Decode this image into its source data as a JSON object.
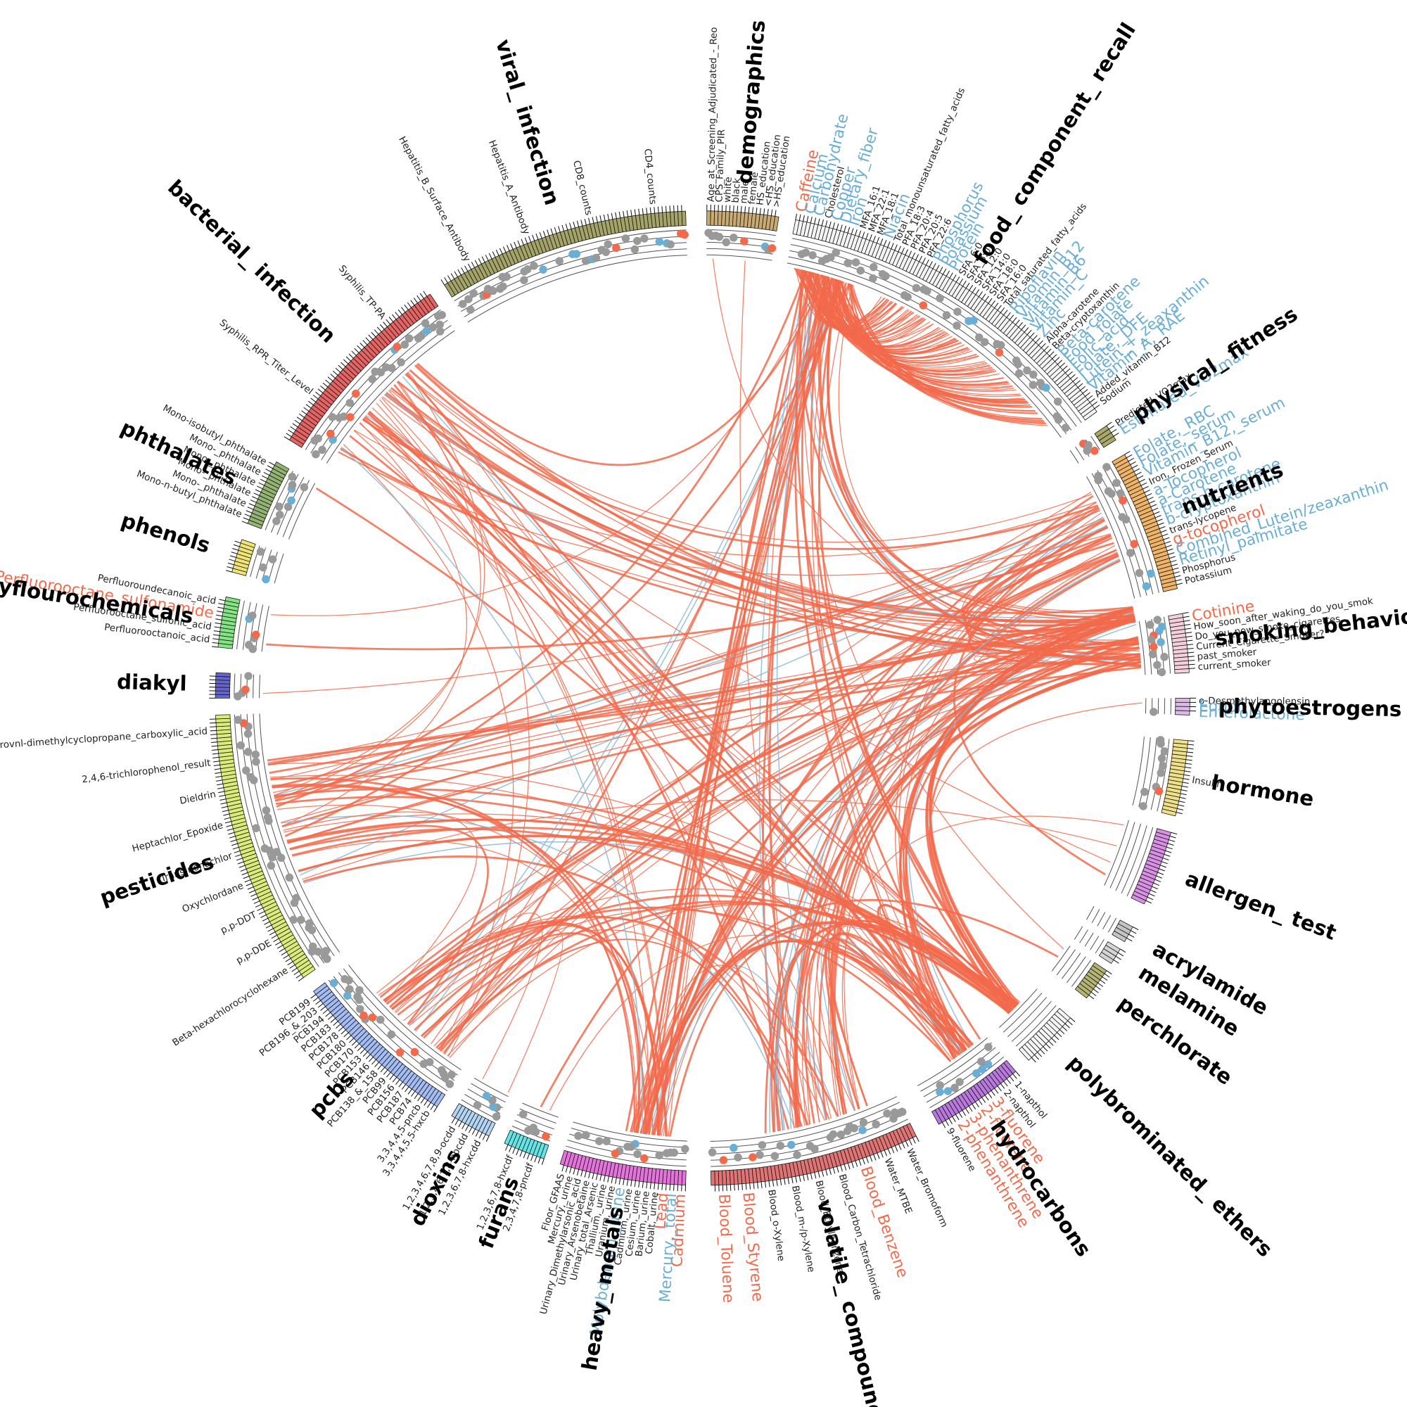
{
  "sectors": [
    {
      "name": "demographics",
      "color": "#c8aa72",
      "labels": [
        {
          "text": "Age_at_Screening_Adjudicated_-_Reo",
          "color": "#222222"
        },
        {
          "text": "CPS_Family_PIR",
          "color": "#222222"
        },
        {
          "text": "white",
          "color": "#222222"
        },
        {
          "text": "black",
          "color": "#222222"
        },
        {
          "text": "male",
          "color": "#222222"
        },
        {
          "text": "female",
          "color": "#222222"
        },
        {
          "text": "HS_education",
          "color": "#222222"
        },
        {
          "text": "<HS_education",
          "color": "#222222"
        },
        {
          "text": ">HS_education",
          "color": "#222222"
        }
      ]
    },
    {
      "name": "food_ component_ recall",
      "color": "#f4f4f4",
      "labels": [
        {
          "text": "Caffeine",
          "color": "#f26a4b"
        },
        {
          "text": "Calcium",
          "color": "#6aaed6"
        },
        {
          "text": "Carbohydrate",
          "color": "#6aaed6"
        },
        {
          "text": "Cholesterol",
          "color": "#222222"
        },
        {
          "text": "Copper",
          "color": "#6aaed6"
        },
        {
          "text": "Dietary_fiber",
          "color": "#6aaed6"
        },
        {
          "text": "Iron",
          "color": "#6aaed6"
        },
        {
          "text": "MFA_16:1",
          "color": "#222222"
        },
        {
          "text": "MFA_22:1",
          "color": "#222222"
        },
        {
          "text": "MFA_18:1",
          "color": "#222222"
        },
        {
          "text": "Niacin",
          "color": "#6aaed6"
        },
        {
          "text": "Total_monounsaturated_fatty_acids",
          "color": "#222222"
        },
        {
          "text": "PFA_18:3",
          "color": "#222222"
        },
        {
          "text": "PFA_20:4",
          "color": "#222222"
        },
        {
          "text": "PFA_20:5",
          "color": "#222222"
        },
        {
          "text": "PFA_22:6",
          "color": "#222222"
        },
        {
          "text": "Phosphorus",
          "color": "#6aaed6"
        },
        {
          "text": "Potassium",
          "color": "#6aaed6"
        },
        {
          "text": "Protein",
          "color": "#6aaed6"
        },
        {
          "text": "SFA_6:0",
          "color": "#222222"
        },
        {
          "text": "SFA_8:0",
          "color": "#222222"
        },
        {
          "text": "SFA_12:0",
          "color": "#222222"
        },
        {
          "text": "SFA_14:0",
          "color": "#222222"
        },
        {
          "text": "SFA_18:0",
          "color": "#222222"
        },
        {
          "text": "SFA_16:0",
          "color": "#222222"
        },
        {
          "text": "Total_saturated_fatty_acids",
          "color": "#222222"
        },
        {
          "text": "Riboflavin",
          "color": "#6aaed6"
        },
        {
          "text": "Vitamin_B12",
          "color": "#6aaed6"
        },
        {
          "text": "Vitamin_B6",
          "color": "#6aaed6"
        },
        {
          "text": "Vitamin_C",
          "color": "#6aaed6"
        },
        {
          "text": "Zinc",
          "color": "#6aaed6"
        },
        {
          "text": "Alpha-carotene",
          "color": "#222222"
        },
        {
          "text": "Beta-cryptoxanthin",
          "color": "#222222"
        },
        {
          "text": "Beta-carotene",
          "color": "#6aaed6"
        },
        {
          "text": "Food_folate",
          "color": "#6aaed6"
        },
        {
          "text": "Folic_acid",
          "color": "#6aaed6"
        },
        {
          "text": "Folate,_DFE",
          "color": "#6aaed6"
        },
        {
          "text": "Lutein_+_zeaxanthin",
          "color": "#6aaed6"
        },
        {
          "text": "Vitamin_A,_RAE",
          "color": "#6aaed6"
        },
        {
          "text": "Added_vitamin_B12",
          "color": "#222222"
        },
        {
          "text": "Sodium",
          "color": "#222222"
        }
      ]
    },
    {
      "name": "physical_ fitness",
      "color": "#a8a868",
      "labels": [
        {
          "text": "Predicted_VO2max",
          "color": "#222222"
        },
        {
          "text": "Estimated_VO2max",
          "color": "#6aaed6"
        }
      ]
    },
    {
      "name": "nutrients",
      "color": "#f0b468",
      "labels": [
        {
          "text": "Folate,_RBC",
          "color": "#6aaed6"
        },
        {
          "text": "Folate,_serum",
          "color": "#6aaed6"
        },
        {
          "text": "Vitamin_B12,_serum",
          "color": "#6aaed6"
        },
        {
          "text": "Iron,_Frozen_Serum",
          "color": "#222222"
        },
        {
          "text": "a-Tocopherol",
          "color": "#6aaed6"
        },
        {
          "text": "a-Carotene",
          "color": "#6aaed6"
        },
        {
          "text": "trans-b-carotene",
          "color": "#6aaed6"
        },
        {
          "text": "b-cryptoxanthin",
          "color": "#6aaed6"
        },
        {
          "text": "trans-lycopene",
          "color": "#222222"
        },
        {
          "text": "g-tocopherol",
          "color": "#f26a4b"
        },
        {
          "text": "Combined_Lutein/zeaxanthin",
          "color": "#6aaed6"
        },
        {
          "text": "Retinyl_palmitate",
          "color": "#6aaed6"
        },
        {
          "text": "Phosphorus",
          "color": "#222222"
        },
        {
          "text": "Potassium",
          "color": "#222222"
        }
      ]
    },
    {
      "name": "smoking_behavior",
      "color": "#f4d0dc",
      "labels": [
        {
          "text": "Cotinine",
          "color": "#f26a4b"
        },
        {
          "text": "How_soon_after_waking_do_you_smok",
          "color": "#222222"
        },
        {
          "text": "Do_you_now_smoke_cigarettes...",
          "color": "#222222"
        },
        {
          "text": "Current_Cigarette_Smoker?",
          "color": "#222222"
        },
        {
          "text": "past_smoker",
          "color": "#222222"
        },
        {
          "text": "current_smoker",
          "color": "#222222"
        }
      ]
    },
    {
      "name": "phytoestrogens",
      "color": "#dcb8e8",
      "labels": [
        {
          "text": "o-Desmethylangolensin",
          "color": "#222222"
        },
        {
          "text": "Equol",
          "color": "#6aaed6"
        },
        {
          "text": "Enterolactone",
          "color": "#6aaed6"
        }
      ]
    },
    {
      "name": "hormone",
      "color": "#f0e088",
      "labels": [
        {
          "text": "Insulin",
          "color": "#222222"
        }
      ]
    },
    {
      "name": "allergen_ test",
      "color": "#d890e4",
      "labels": []
    },
    {
      "name": "acrylamide",
      "color": "#c4c4c4",
      "labels": []
    },
    {
      "name": "melamine",
      "color": "#d4d4d4",
      "labels": []
    },
    {
      "name": "perchlorate",
      "color": "#b4b474",
      "labels": []
    },
    {
      "name": "polybrominated_ ethers",
      "color": "#f6f6f6",
      "labels": []
    },
    {
      "name": "hydrocarbons",
      "color": "#b878dc",
      "labels": [
        {
          "text": "1-napthol",
          "color": "#222222"
        },
        {
          "text": "2-napthol",
          "color": "#222222"
        },
        {
          "text": "3-fluorene",
          "color": "#f26a4b"
        },
        {
          "text": "2-fluorene",
          "color": "#f26a4b"
        },
        {
          "text": "3-phenanthrene",
          "color": "#f26a4b"
        },
        {
          "text": "2-phenanthrene",
          "color": "#f26a4b"
        },
        {
          "text": "9-fluorene",
          "color": "#222222"
        }
      ]
    },
    {
      "name": "volatile_ compounds",
      "color": "#e07474",
      "labels": [
        {
          "text": "Water_Bromoform",
          "color": "#222222"
        },
        {
          "text": "Water_MTBE",
          "color": "#222222"
        },
        {
          "text": "Blood_Benzene",
          "color": "#f26a4b"
        },
        {
          "text": "Blood_Carbon_Tetrachloride",
          "color": "#222222"
        },
        {
          "text": "Blood_Ethylbenzene",
          "color": "#222222"
        },
        {
          "text": "Blood_m-/p-Xylene",
          "color": "#222222"
        },
        {
          "text": "Blood_o-Xylene",
          "color": "#222222"
        },
        {
          "text": "Blood_Styrene",
          "color": "#f26a4b"
        },
        {
          "text": "Blood_Toluene",
          "color": "#f26a4b"
        }
      ]
    },
    {
      "name": "heavy_ metals",
      "color": "#e474dc",
      "labels": [
        {
          "text": "Cadmium",
          "color": "#f26a4b"
        },
        {
          "text": "Mercury,_total",
          "color": "#6aaed6"
        },
        {
          "text": "Lead",
          "color": "#f26a4b"
        },
        {
          "text": "Cobalt,_urine",
          "color": "#222222"
        },
        {
          "text": "Barium,_urine",
          "color": "#222222"
        },
        {
          "text": "Cesium,_urine",
          "color": "#222222"
        },
        {
          "text": "Cadmium,_urine",
          "color": "#222222"
        },
        {
          "text": "Molybdenum,_urine",
          "color": "#6aaed6"
        },
        {
          "text": "Uranium,_urine",
          "color": "#222222"
        },
        {
          "text": "Thallium,_urine",
          "color": "#222222"
        },
        {
          "text": "Urinary_total_Arsenic",
          "color": "#222222"
        },
        {
          "text": "Urinary_Arsenobetaine",
          "color": "#222222"
        },
        {
          "text": "Urinary_Dimethylarsonic_acid",
          "color": "#222222"
        },
        {
          "text": "Mercury,_urine",
          "color": "#222222"
        },
        {
          "text": "Floor_GFAAS",
          "color": "#222222"
        }
      ]
    },
    {
      "name": "furans",
      "color": "#64e4e4",
      "labels": [
        {
          "text": "2,3,4,7,8-pncdf",
          "color": "#222222"
        },
        {
          "text": "1,2,3,6,7,8-hxcdf",
          "color": "#222222"
        }
      ]
    },
    {
      "name": "dioxins",
      "color": "#b4d4f4",
      "labels": [
        {
          "text": "1,2,3,6,7,8-hxcdd",
          "color": "#222222"
        },
        {
          "text": "1,2,3,4,6,7,8-hpcdd",
          "color": "#222222"
        },
        {
          "text": "1,2,3,4,6,7,8,9-ocdd",
          "color": "#222222"
        }
      ]
    },
    {
      "name": "pcbs",
      "color": "#a4bcf4",
      "labels": [
        {
          "text": "3,3,4,4,5,5-hxcb",
          "color": "#222222"
        },
        {
          "text": "3,3,4,4,5-pncb",
          "color": "#222222"
        },
        {
          "text": "PCB74",
          "color": "#222222"
        },
        {
          "text": "PCB187",
          "color": "#222222"
        },
        {
          "text": "PCB156",
          "color": "#222222"
        },
        {
          "text": "PCB99",
          "color": "#222222"
        },
        {
          "text": "PCB138_&_158",
          "color": "#222222"
        },
        {
          "text": "PCB146",
          "color": "#222222"
        },
        {
          "text": "PCB153",
          "color": "#222222"
        },
        {
          "text": "PCB170",
          "color": "#222222"
        },
        {
          "text": "PCB180",
          "color": "#222222"
        },
        {
          "text": "PCB178",
          "color": "#222222"
        },
        {
          "text": "PCB183",
          "color": "#222222"
        },
        {
          "text": "PCB194",
          "color": "#222222"
        },
        {
          "text": "PCB196_&_203",
          "color": "#222222"
        },
        {
          "text": "PCB199",
          "color": "#222222"
        }
      ]
    },
    {
      "name": "pesticides",
      "color": "#dcec78",
      "labels": [
        {
          "text": "Beta-hexachlorocyclohexane",
          "color": "#222222"
        },
        {
          "text": "p,p-DDE",
          "color": "#222222"
        },
        {
          "text": "p,p-DDT",
          "color": "#222222"
        },
        {
          "text": "Oxychlordane",
          "color": "#222222"
        },
        {
          "text": "Trans-nonachlor",
          "color": "#222222"
        },
        {
          "text": "Heptachlor_Epoxide",
          "color": "#222222"
        },
        {
          "text": "Dieldrin",
          "color": "#222222"
        },
        {
          "text": "2,4,6-trichlorophenol_result",
          "color": "#222222"
        },
        {
          "text": "dichlorovnl-dimethylcyclopropane_carboxylic_acid",
          "color": "#222222"
        }
      ]
    },
    {
      "name": "diakyl",
      "color": "#6464cc",
      "labels": []
    },
    {
      "name": "polyflourochemicals",
      "color": "#84e484",
      "labels": [
        {
          "text": "Perfluorooctanoic_acid",
          "color": "#222222"
        },
        {
          "text": "Perfluorooctane_sulfonic_acid",
          "color": "#222222"
        },
        {
          "text": "Perfluorooctane_sulfonamide",
          "color": "#f26a4b"
        },
        {
          "text": "Perfluoroundecanoic_acid",
          "color": "#222222"
        }
      ]
    },
    {
      "name": "phenols",
      "color": "#f0e474",
      "labels": []
    },
    {
      "name": "phthalates",
      "color": "#94b474",
      "labels": [
        {
          "text": "Mono-n-butyl_phthalate",
          "color": "#222222"
        },
        {
          "text": "Mono-_phthalate",
          "color": "#222222"
        },
        {
          "text": "Mono-_phthalate",
          "color": "#222222"
        },
        {
          "text": "Mono-_phthalate",
          "color": "#222222"
        },
        {
          "text": "Mono-_phthalate",
          "color": "#222222"
        },
        {
          "text": "Mono-isobutyl_phthalate",
          "color": "#222222"
        }
      ]
    },
    {
      "name": "bacterial_ infection",
      "color": "#e46464",
      "labels": [
        {
          "text": "Syphilis_RPR_Titer_Level",
          "color": "#222222"
        },
        {
          "text": "Syphilis_TP-PA",
          "color": "#222222"
        }
      ]
    },
    {
      "name": "viral_ infection",
      "color": "#a4a468",
      "labels": [
        {
          "text": "Hepatitis_B_Surface_Antibody",
          "color": "#222222"
        },
        {
          "text": "Hepatitis_A_Antibody",
          "color": "#222222"
        },
        {
          "text": "CD8_counts",
          "color": "#222222"
        },
        {
          "text": "CD4_counts",
          "color": "#222222"
        }
      ]
    }
  ]
}
